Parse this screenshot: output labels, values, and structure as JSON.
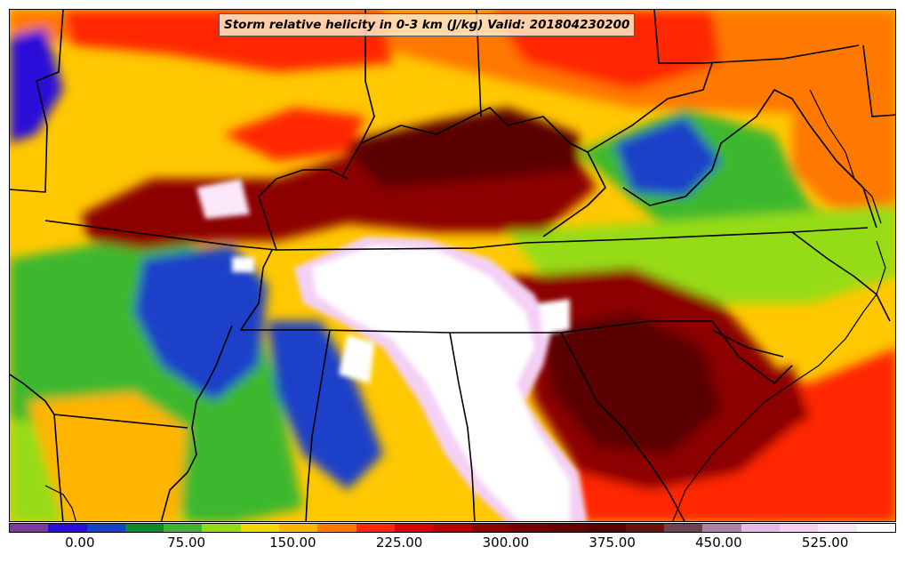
{
  "title": "Storm relative helicity in 0-3 km (J/kg) Valid: 201804230200",
  "colorbar": {
    "colors": [
      "#7a3aa0",
      "#2a0ed8",
      "#1a40c8",
      "#0a8c2e",
      "#3cb82e",
      "#96dc14",
      "#f0dc00",
      "#ffb400",
      "#ff7800",
      "#ff2800",
      "#dc0000",
      "#b40000",
      "#8c0000",
      "#780000",
      "#680000",
      "#5a0000",
      "#6a1010",
      "#6c4450",
      "#b080a8",
      "#e8b8e8",
      "#f4d0f4",
      "#fae8fa",
      "#ffffff"
    ],
    "tick_labels": [
      "0.00",
      "75.00",
      "150.00",
      "225.00",
      "300.00",
      "375.00",
      "450.00",
      "525.00"
    ],
    "tick_values": [
      0,
      75,
      150,
      225,
      300,
      375,
      450,
      525
    ],
    "range": [
      -50,
      575
    ]
  }
}
